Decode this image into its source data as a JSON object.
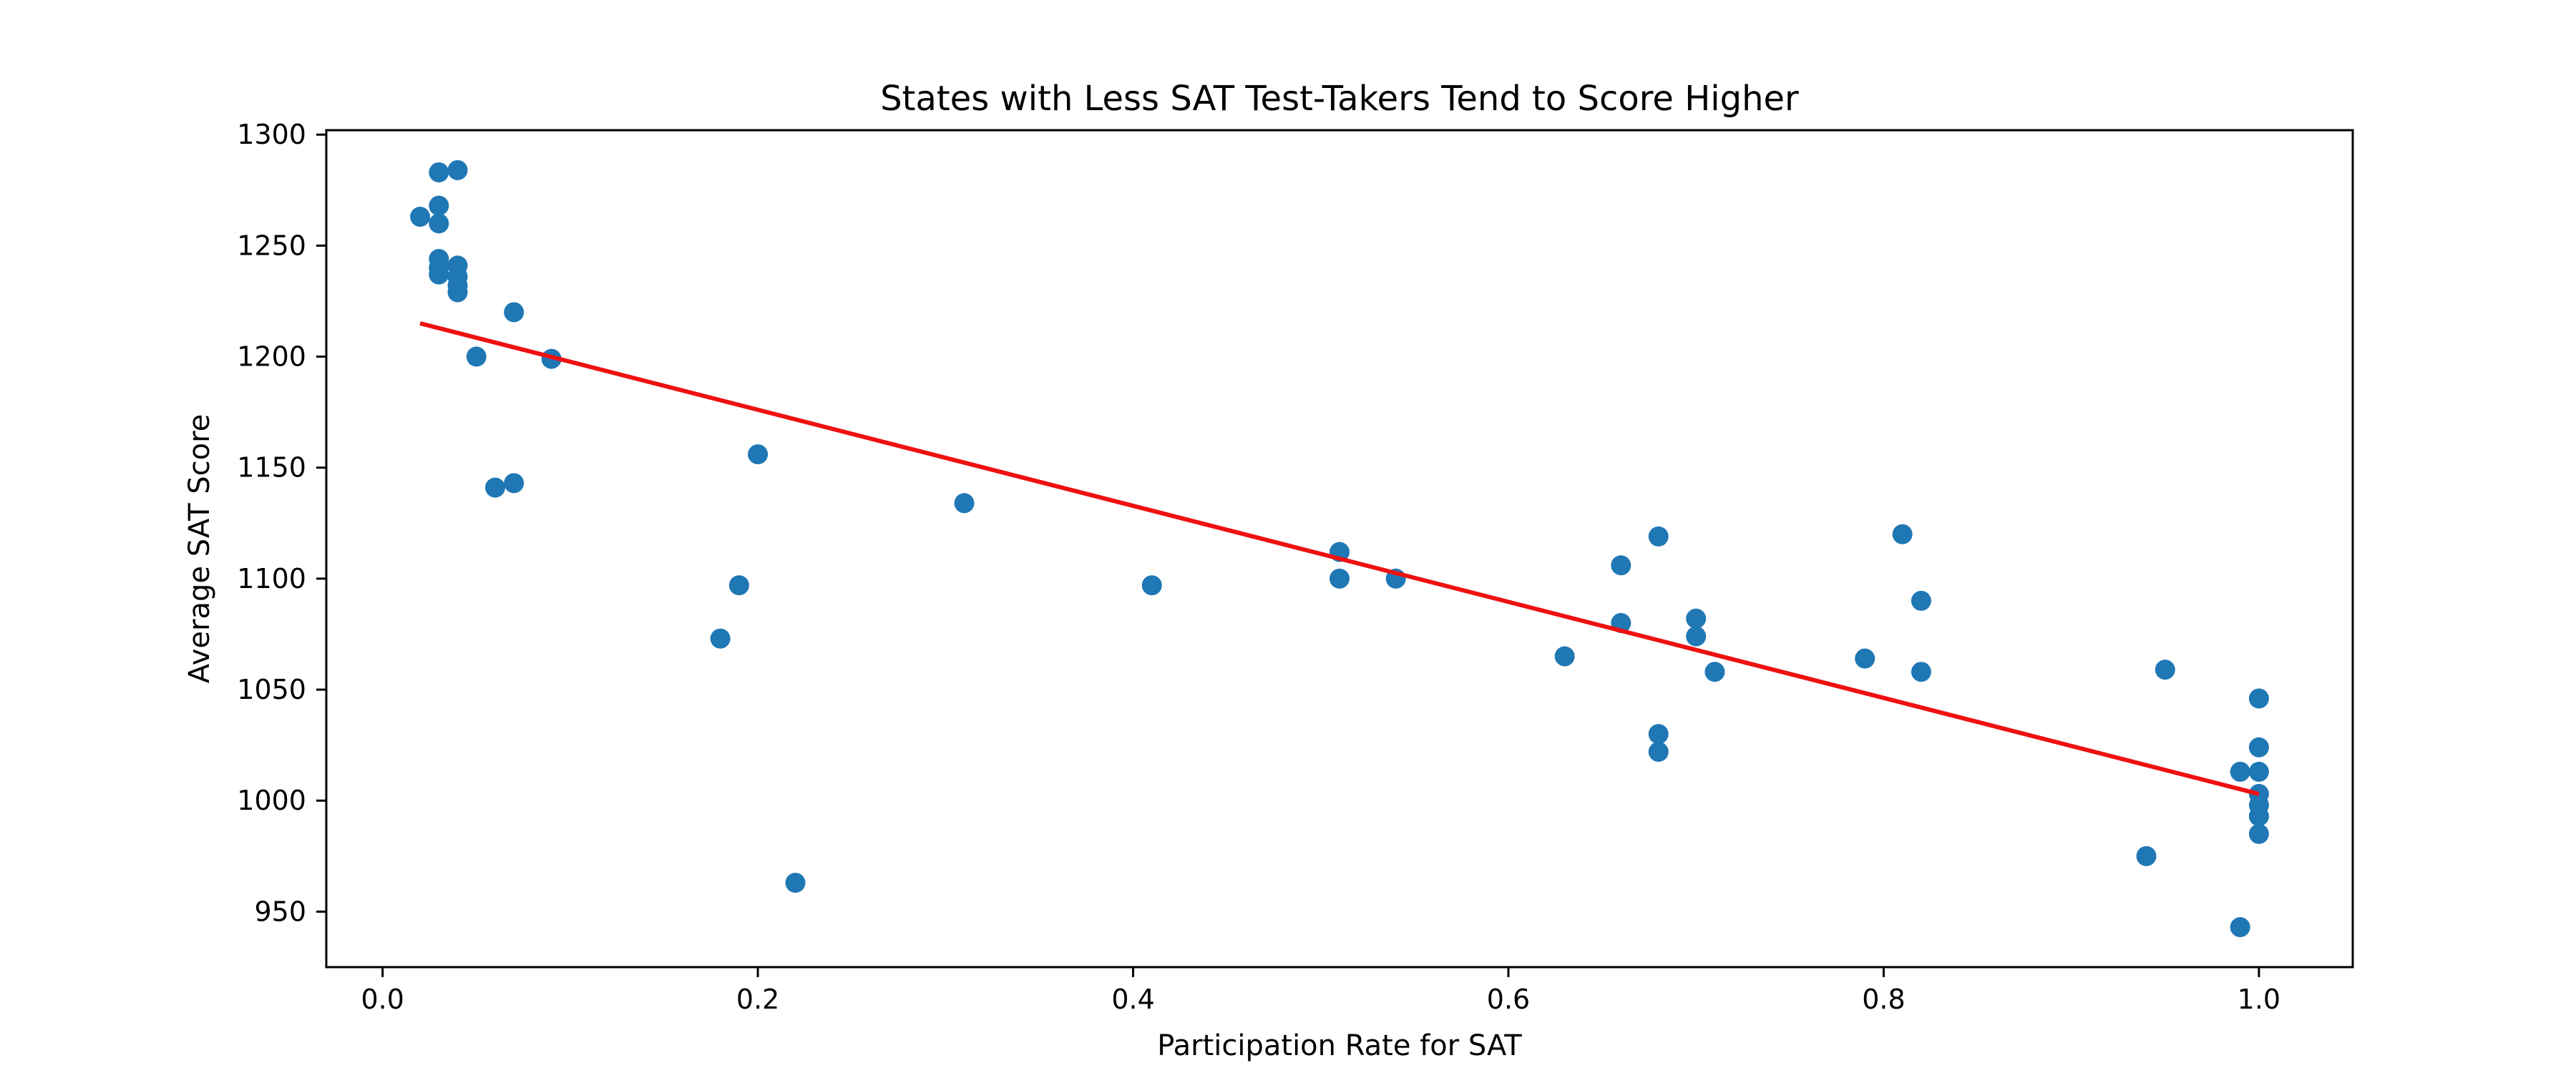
{
  "chart_data": {
    "type": "scatter",
    "title": "States with Less SAT Test-Takers Tend to Score Higher",
    "xlabel": "Participation Rate for SAT",
    "ylabel": "Average SAT Score",
    "xlim": [
      -0.03,
      1.05
    ],
    "ylim": [
      925,
      1302
    ],
    "xticks": [
      0.0,
      0.2,
      0.4,
      0.6,
      0.8,
      1.0
    ],
    "xtick_labels": [
      "0.0",
      "0.2",
      "0.4",
      "0.6",
      "0.8",
      "1.0"
    ],
    "yticks": [
      950,
      1000,
      1050,
      1100,
      1150,
      1200,
      1250,
      1300
    ],
    "ytick_labels": [
      "950",
      "1000",
      "1050",
      "1100",
      "1150",
      "1200",
      "1250",
      "1300"
    ],
    "grid": false,
    "points": [
      {
        "x": 0.02,
        "y": 1263
      },
      {
        "x": 0.03,
        "y": 1283
      },
      {
        "x": 0.03,
        "y": 1268
      },
      {
        "x": 0.03,
        "y": 1260
      },
      {
        "x": 0.03,
        "y": 1244
      },
      {
        "x": 0.03,
        "y": 1240
      },
      {
        "x": 0.03,
        "y": 1237
      },
      {
        "x": 0.04,
        "y": 1284
      },
      {
        "x": 0.04,
        "y": 1241
      },
      {
        "x": 0.04,
        "y": 1236
      },
      {
        "x": 0.04,
        "y": 1232
      },
      {
        "x": 0.04,
        "y": 1229
      },
      {
        "x": 0.05,
        "y": 1200
      },
      {
        "x": 0.06,
        "y": 1141
      },
      {
        "x": 0.07,
        "y": 1220
      },
      {
        "x": 0.07,
        "y": 1143
      },
      {
        "x": 0.09,
        "y": 1199
      },
      {
        "x": 0.18,
        "y": 1073
      },
      {
        "x": 0.19,
        "y": 1097
      },
      {
        "x": 0.2,
        "y": 1156
      },
      {
        "x": 0.22,
        "y": 963
      },
      {
        "x": 0.31,
        "y": 1134
      },
      {
        "x": 0.41,
        "y": 1097
      },
      {
        "x": 0.51,
        "y": 1112
      },
      {
        "x": 0.51,
        "y": 1100
      },
      {
        "x": 0.54,
        "y": 1100
      },
      {
        "x": 0.63,
        "y": 1065
      },
      {
        "x": 0.66,
        "y": 1106
      },
      {
        "x": 0.66,
        "y": 1080
      },
      {
        "x": 0.68,
        "y": 1119
      },
      {
        "x": 0.68,
        "y": 1030
      },
      {
        "x": 0.68,
        "y": 1022
      },
      {
        "x": 0.7,
        "y": 1082
      },
      {
        "x": 0.7,
        "y": 1074
      },
      {
        "x": 0.71,
        "y": 1058
      },
      {
        "x": 0.79,
        "y": 1064
      },
      {
        "x": 0.81,
        "y": 1120
      },
      {
        "x": 0.82,
        "y": 1090
      },
      {
        "x": 0.82,
        "y": 1058
      },
      {
        "x": 0.94,
        "y": 975
      },
      {
        "x": 0.95,
        "y": 1059
      },
      {
        "x": 0.99,
        "y": 1013
      },
      {
        "x": 0.99,
        "y": 943
      },
      {
        "x": 1.0,
        "y": 1046
      },
      {
        "x": 1.0,
        "y": 1024
      },
      {
        "x": 1.0,
        "y": 1013
      },
      {
        "x": 1.0,
        "y": 1003
      },
      {
        "x": 1.0,
        "y": 998
      },
      {
        "x": 1.0,
        "y": 993
      },
      {
        "x": 1.0,
        "y": 985
      }
    ],
    "trend_line": {
      "x": [
        0.02,
        1.0
      ],
      "y": [
        1215,
        1003
      ]
    },
    "colors": {
      "points": "#1f77b4",
      "trend_line": "#ee1111",
      "axes": "#000000"
    }
  }
}
